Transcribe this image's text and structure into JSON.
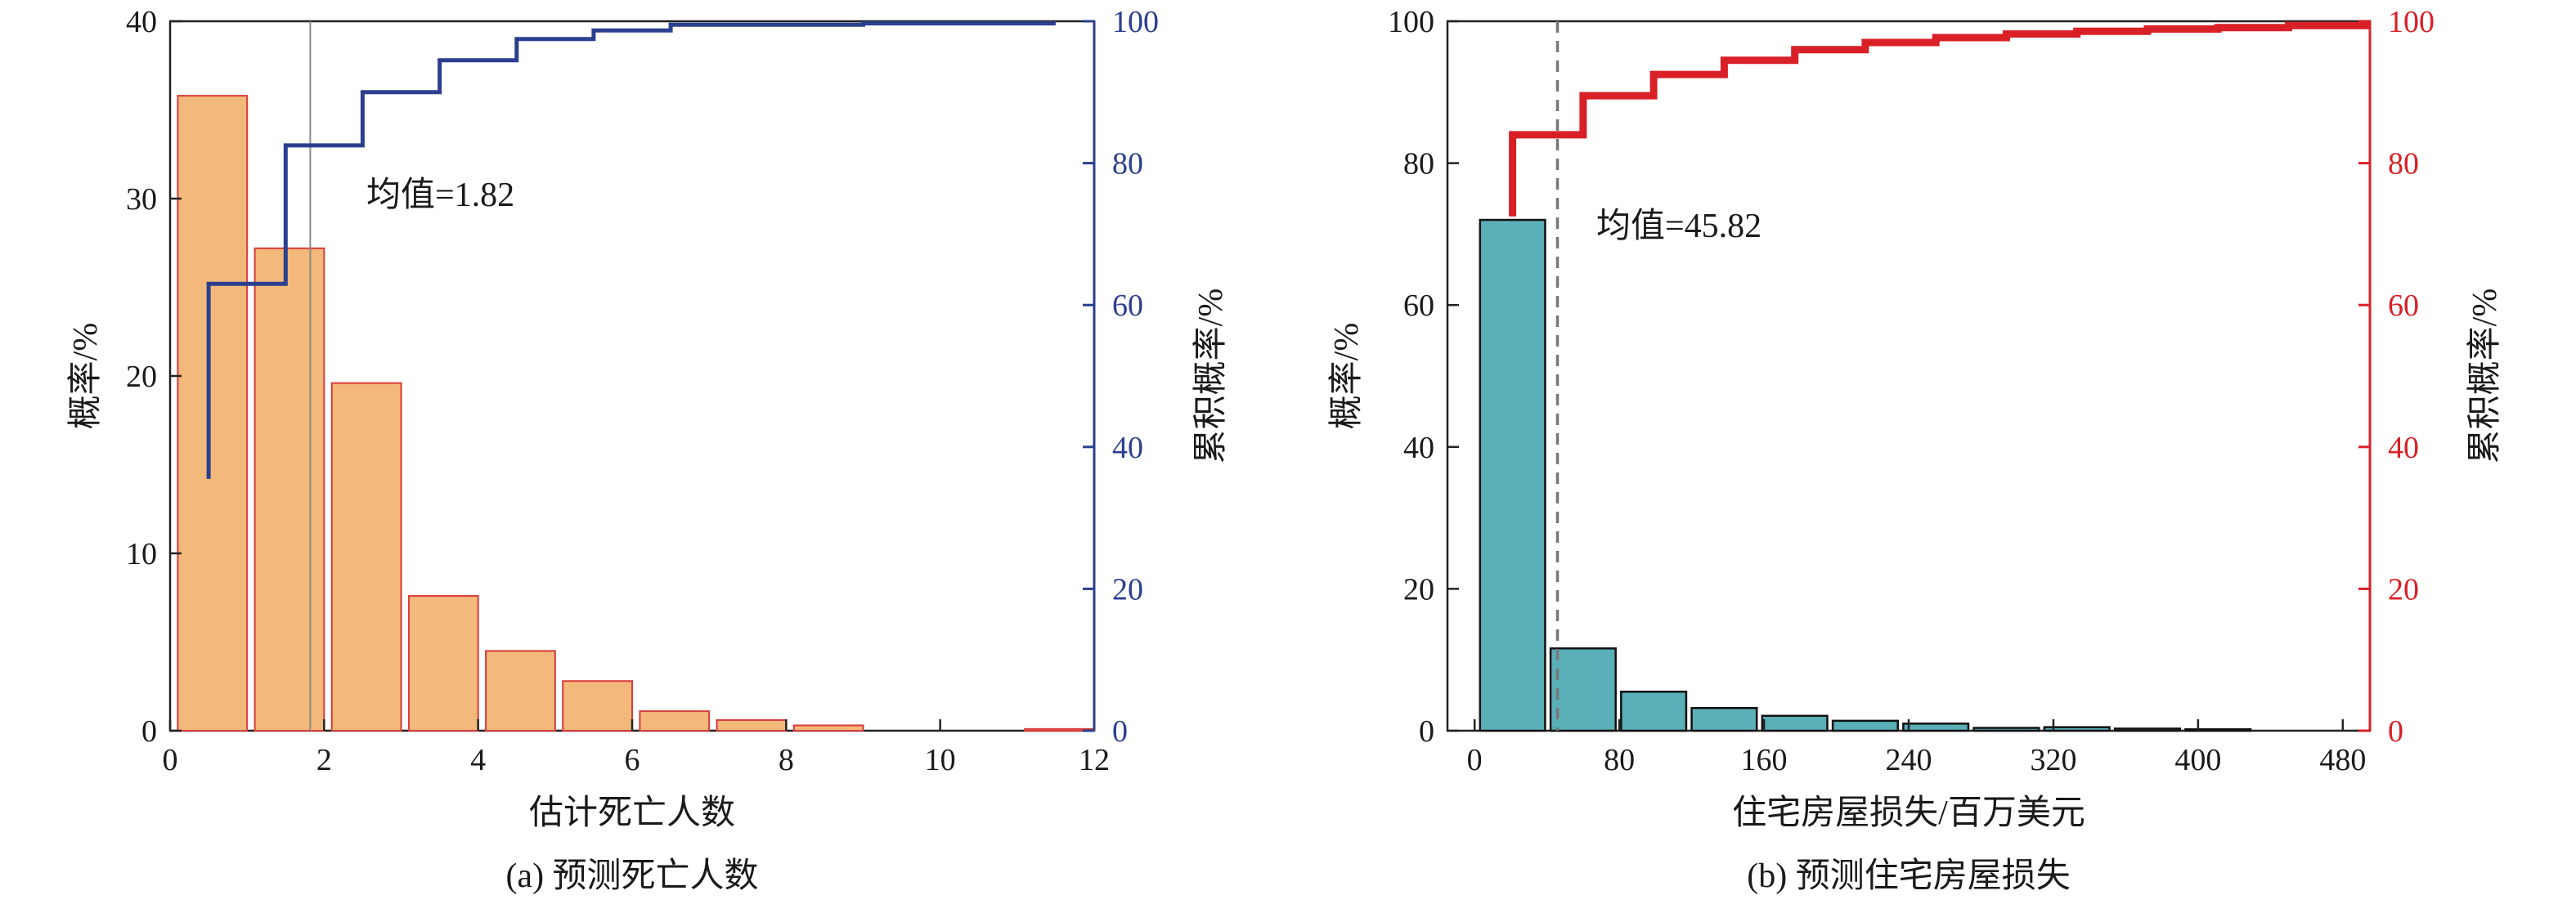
{
  "chart_data": [
    {
      "type": "bar",
      "caption": "(a) 预测死亡人数",
      "xlabel": "估计死亡人数",
      "ylabel": "概率/%",
      "y2label": "累积概率/%",
      "xlim": [
        0,
        12
      ],
      "ylim": [
        0,
        40
      ],
      "y2lim": [
        0,
        100
      ],
      "xticks": [
        "0",
        "2",
        "4",
        "6",
        "8",
        "10",
        "12"
      ],
      "yticks": [
        "0",
        "10",
        "20",
        "30",
        "40"
      ],
      "y2ticks": [
        "0",
        "20",
        "40",
        "60",
        "80",
        "100"
      ],
      "bar_color": "#f2b97a",
      "bar_edge": "#d93a3a",
      "line_color": "#2b3f8f",
      "bars": [
        {
          "x0": 0.1,
          "x1": 1.0,
          "value": 35.8
        },
        {
          "x0": 1.1,
          "x1": 2.0,
          "value": 27.2
        },
        {
          "x0": 2.1,
          "x1": 3.0,
          "value": 19.6
        },
        {
          "x0": 3.1,
          "x1": 4.0,
          "value": 7.6
        },
        {
          "x0": 4.1,
          "x1": 5.0,
          "value": 4.5
        },
        {
          "x0": 5.1,
          "x1": 6.0,
          "value": 2.8
        },
        {
          "x0": 6.1,
          "x1": 7.0,
          "value": 1.1
        },
        {
          "x0": 7.1,
          "x1": 8.0,
          "value": 0.6
        },
        {
          "x0": 8.1,
          "x1": 9.0,
          "value": 0.3
        },
        {
          "x0": 11.1,
          "x1": 12.0,
          "value": 0.1
        }
      ],
      "cdf_steps": [
        [
          0.5,
          35.5
        ],
        [
          0.5,
          63
        ],
        [
          1.5,
          63
        ],
        [
          1.5,
          82.5
        ],
        [
          2.5,
          82.5
        ],
        [
          2.5,
          90
        ],
        [
          3.5,
          90
        ],
        [
          3.5,
          94.5
        ],
        [
          4.5,
          94.5
        ],
        [
          4.5,
          97.5
        ],
        [
          5.5,
          97.5
        ],
        [
          5.5,
          98.7
        ],
        [
          6.5,
          98.7
        ],
        [
          6.5,
          99.5
        ],
        [
          9.0,
          99.5
        ],
        [
          9.0,
          99.7
        ],
        [
          11.5,
          99.7
        ]
      ],
      "mean": 1.82,
      "mean_label": "均值=1.82"
    },
    {
      "type": "bar",
      "caption": "(b) 预测住宅房屋损失",
      "xlabel": "住宅房屋损失/百万美元",
      "ylabel": "概率/%",
      "y2label": "累积概率/%",
      "xlim": [
        -15,
        495
      ],
      "ylim": [
        0,
        100
      ],
      "y2lim": [
        0,
        100
      ],
      "xticks": [
        "0",
        "80",
        "160",
        "240",
        "320",
        "400",
        "480"
      ],
      "yticks": [
        "0",
        "20",
        "40",
        "60",
        "80",
        "100"
      ],
      "y2ticks": [
        "0",
        "20",
        "40",
        "60",
        "80",
        "100"
      ],
      "bar_color": "#5aafb8",
      "bar_edge": "#111111",
      "line_color": "#d92027",
      "bars": [
        {
          "x0": 3,
          "x1": 39,
          "value": 72
        },
        {
          "x0": 42,
          "x1": 78,
          "value": 11.6
        },
        {
          "x0": 81,
          "x1": 117,
          "value": 5.5
        },
        {
          "x0": 120,
          "x1": 156,
          "value": 3.2
        },
        {
          "x0": 159,
          "x1": 195,
          "value": 2.1
        },
        {
          "x0": 198,
          "x1": 234,
          "value": 1.4
        },
        {
          "x0": 237,
          "x1": 273,
          "value": 1.0
        },
        {
          "x0": 276,
          "x1": 312,
          "value": 0.4
        },
        {
          "x0": 315,
          "x1": 351,
          "value": 0.5
        },
        {
          "x0": 354,
          "x1": 390,
          "value": 0.3
        },
        {
          "x0": 393,
          "x1": 429,
          "value": 0.2
        }
      ],
      "cdf_steps": [
        [
          21,
          72.5
        ],
        [
          21,
          84
        ],
        [
          60,
          84
        ],
        [
          60,
          89.5
        ],
        [
          99,
          89.5
        ],
        [
          99,
          92.5
        ],
        [
          138,
          92.5
        ],
        [
          138,
          94.5
        ],
        [
          177,
          94.5
        ],
        [
          177,
          96
        ],
        [
          216,
          96
        ],
        [
          216,
          97
        ],
        [
          255,
          97
        ],
        [
          255,
          97.7
        ],
        [
          294,
          97.7
        ],
        [
          294,
          98.2
        ],
        [
          333,
          98.2
        ],
        [
          333,
          98.6
        ],
        [
          372,
          98.6
        ],
        [
          372,
          98.9
        ],
        [
          411,
          98.9
        ],
        [
          411,
          99.1
        ],
        [
          450,
          99.1
        ],
        [
          450,
          99.4
        ],
        [
          495,
          99.4
        ]
      ],
      "mean": 45.82,
      "mean_label": "均值=45.82"
    }
  ]
}
